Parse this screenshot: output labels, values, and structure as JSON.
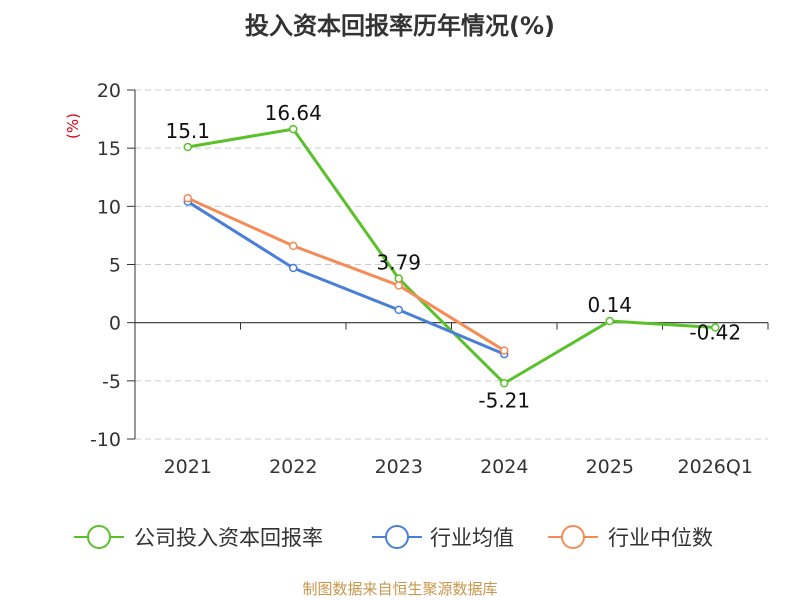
{
  "chart_data": {
    "type": "line",
    "title": "投入资本回报率历年情况(%)",
    "ylabel": "(%)",
    "xlabel": "",
    "categories": [
      "2021",
      "2022",
      "2023",
      "2024",
      "2025",
      "2026Q1"
    ],
    "ylim": [
      -10,
      20
    ],
    "yticks": [
      20,
      15,
      10,
      5,
      0,
      -5,
      -10
    ],
    "grid": true,
    "legend_position": "bottom",
    "series": [
      {
        "name": "公司投入资本回报率",
        "color": "#5ac12a",
        "values": [
          15.1,
          16.64,
          3.79,
          -5.21,
          0.14,
          -0.42
        ],
        "labels": [
          "15.1",
          "16.64",
          "3.79",
          "-5.21",
          "0.14",
          "-0.42"
        ]
      },
      {
        "name": "行业均值",
        "color": "#4a7fd8",
        "values": [
          10.4,
          4.7,
          1.1,
          -2.7,
          null,
          null
        ],
        "labels": []
      },
      {
        "name": "行业中位数",
        "color": "#f58c58",
        "values": [
          10.7,
          6.6,
          3.2,
          -2.4,
          null,
          null
        ],
        "labels": []
      }
    ]
  },
  "footer": "制图数据来自恒生聚源数据库"
}
